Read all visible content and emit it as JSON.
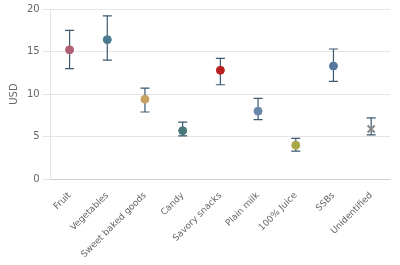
{
  "chart_data": {
    "type": "dot",
    "categories": [
      "Fruit",
      "Vegetables",
      "Sweet baked goods",
      "Candy",
      "Savory snacks",
      "Plain milk",
      "100% Juice",
      "SSBs",
      "Unidentified"
    ],
    "values": [
      15.2,
      16.4,
      9.4,
      5.7,
      12.8,
      8.0,
      4.0,
      13.3,
      5.9
    ],
    "error_bars": {
      "lower": [
        13.0,
        14.0,
        7.9,
        5.1,
        11.1,
        7.0,
        3.3,
        11.5,
        5.2
      ],
      "upper": [
        17.5,
        19.2,
        10.7,
        6.7,
        14.2,
        9.5,
        4.8,
        15.3,
        7.2
      ],
      "color": "#3a5870"
    },
    "colors": [
      "#b06070",
      "#4a7a90",
      "#c8a060",
      "#4a7878",
      "#b82020",
      "#6888a8",
      "#a8a848",
      "#5878a0",
      "#888888"
    ],
    "markers": [
      "circle",
      "circle",
      "circle",
      "circle",
      "circle",
      "circle",
      "circle",
      "circle",
      "cross"
    ],
    "ylabel": "USD",
    "ylim": [
      0,
      20
    ],
    "yticks": [
      0,
      5,
      10,
      15,
      20
    ],
    "grid": true
  }
}
